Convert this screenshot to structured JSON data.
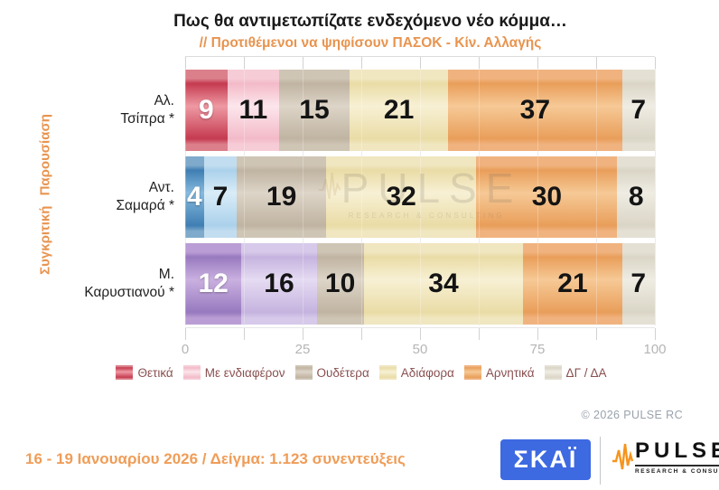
{
  "title": "Πως θα αντιμετωπίζατε ενδεχόμενο νέο κόμμα…",
  "subtitle": "// Προτιθέμενοι να ψηφίσουν ΠΑΣΟΚ - Κίν. Αλλαγής",
  "side_label": "Συγκριτική Παρουσίαση",
  "watermark": {
    "name": "PULSE",
    "sub": "RESEARCH & CONSULTING"
  },
  "chart_data": {
    "type": "bar",
    "stacked": true,
    "orientation": "horizontal",
    "xlim": [
      0,
      100
    ],
    "x_major_ticks": [
      0,
      25,
      50,
      75,
      100
    ],
    "x_minor_ticks": [
      0,
      12.5,
      25,
      37.5,
      50,
      62.5,
      75,
      87.5,
      100
    ],
    "grid": true,
    "legend_position": "bottom",
    "categories": [
      "Αλ. Τσίπρα *",
      "Αντ. Σαμαρά *",
      "Μ. Καρυστιανού *"
    ],
    "series": [
      {
        "name": "Θετικά",
        "values": [
          9,
          4,
          12
        ]
      },
      {
        "name": "Με ενδιαφέρον",
        "values": [
          11,
          7,
          16
        ]
      },
      {
        "name": "Ουδέτερα",
        "values": [
          15,
          19,
          10
        ]
      },
      {
        "name": "Αδιάφορα",
        "values": [
          21,
          32,
          34
        ]
      },
      {
        "name": "Αρνητικά",
        "values": [
          37,
          30,
          21
        ]
      },
      {
        "name": "ΔΓ / ΔΑ",
        "values": [
          7,
          8,
          7
        ]
      }
    ],
    "rows": [
      {
        "label_lines": [
          "Αλ.",
          "Τσίπρα *"
        ],
        "values": [
          9,
          11,
          15,
          21,
          37,
          7
        ]
      },
      {
        "label_lines": [
          "Αντ.",
          "Σαμαρά *"
        ],
        "values": [
          4,
          7,
          19,
          32,
          30,
          8
        ]
      },
      {
        "label_lines": [
          "Μ.",
          "Καρυστιανού *"
        ],
        "values": [
          12,
          16,
          10,
          34,
          21,
          7
        ]
      }
    ]
  },
  "legend_items": [
    "Θετικά",
    "Με ενδιαφέρον",
    "Ουδέτερα",
    "Αδιάφορα",
    "Αρνητικά",
    "ΔΓ / ΔΑ"
  ],
  "colors": {
    "accent_orange": "#E8944F",
    "legend_text": "#8A5050",
    "axis_text": "#B5B5B5",
    "skai_blue": "#3D69E1",
    "pulse_orange": "#F7941D",
    "row_segment_colors": [
      [
        {
          "cap": "#DB808B",
          "dark": "#C53A4F",
          "light": "#EE99A3",
          "text": "#FFFFFF"
        },
        {
          "cap": "#F6CCD7",
          "dark": "#F3BAC8",
          "light": "#FCE6EC",
          "text": "#141414"
        },
        {
          "cap": "#CFC5B5",
          "dark": "#C0B3A1",
          "light": "#DDD5C8",
          "text": "#141414"
        },
        {
          "cap": "#F0E6C0",
          "dark": "#EADCA6",
          "light": "#F7F0D4",
          "text": "#141414"
        },
        {
          "cap": "#F0B37F",
          "dark": "#E99E5A",
          "light": "#F6C996",
          "text": "#141414"
        },
        {
          "cap": "#E4E0D4",
          "dark": "#DAD5C6",
          "light": "#EFECE3",
          "text": "#141414"
        }
      ],
      [
        {
          "cap": "#7FAACB",
          "dark": "#3F7EB3",
          "light": "#86BADD",
          "text": "#FFFFFF"
        },
        {
          "cap": "#C3DDF0",
          "dark": "#ABD1EB",
          "light": "#D9ECF8",
          "text": "#141414"
        },
        {
          "cap": "#CFC5B5",
          "dark": "#C0B3A1",
          "light": "#DDD5C8",
          "text": "#141414"
        },
        {
          "cap": "#F0E6C0",
          "dark": "#EADCA6",
          "light": "#F7F0D4",
          "text": "#141414"
        },
        {
          "cap": "#F0B37F",
          "dark": "#E99E5A",
          "light": "#F6C996",
          "text": "#141414"
        },
        {
          "cap": "#E4E0D4",
          "dark": "#DAD5C6",
          "light": "#EFECE3",
          "text": "#141414"
        }
      ],
      [
        {
          "cap": "#BA9DD4",
          "dark": "#9779BF",
          "light": "#CAB0E0",
          "text": "#FFFFFF"
        },
        {
          "cap": "#D6C9E9",
          "dark": "#C5B3DF",
          "light": "#E5DBF2",
          "text": "#141414"
        },
        {
          "cap": "#CFC5B5",
          "dark": "#C0B3A1",
          "light": "#DDD5C8",
          "text": "#141414"
        },
        {
          "cap": "#F0E6C0",
          "dark": "#EADCA6",
          "light": "#F7F0D4",
          "text": "#141414"
        },
        {
          "cap": "#F0B37F",
          "dark": "#E99E5A",
          "light": "#F6C996",
          "text": "#141414"
        },
        {
          "cap": "#E4E0D4",
          "dark": "#DAD5C6",
          "light": "#EFECE3",
          "text": "#141414"
        }
      ]
    ]
  },
  "copyright": "© 2026 PULSE RC",
  "footer_text": "16 - 19 Ιανουαρίου 2026  /  Δείγμα:  1.123 συνεντεύξεις",
  "logos": {
    "skai_text": "ΣΚΑΪ",
    "pulse_text": "PULSE",
    "pulse_subtext": "RESEARCH & CONSULTING"
  }
}
